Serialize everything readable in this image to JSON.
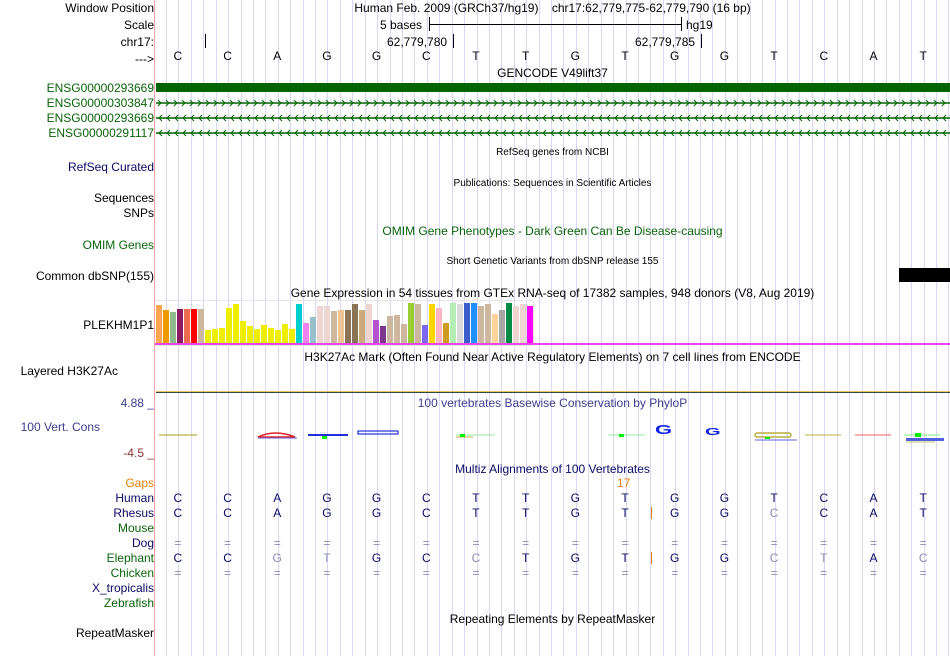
{
  "header": {
    "window_position_label": "Window Position",
    "scale_label": "Scale",
    "chrom_label": "chr17:",
    "strand_label": "--->",
    "assembly": "Human Feb. 2009 (GRCh37/hg19)",
    "position": "chr17:62,779,775-62,779,790 (16 bp)",
    "scale_text": "5 bases",
    "scale_db": "hg19",
    "coord_left": "62,779,780",
    "coord_right": "62,779,785"
  },
  "sequence": [
    "C",
    "C",
    "A",
    "G",
    "G",
    "C",
    "T",
    "T",
    "G",
    "T",
    "G",
    "G",
    "T",
    "C",
    "A",
    "T"
  ],
  "tracks": {
    "gencode": {
      "title": "GENCODE V49lift37",
      "items": [
        {
          "name": "ENSG00000293669",
          "style": "thick"
        },
        {
          "name": "ENSG00000303847",
          "style": "forward"
        },
        {
          "name": "ENSG00000293669",
          "style": "reverse"
        },
        {
          "name": "ENSG00000291117",
          "style": "reverse"
        }
      ],
      "color": "#006400"
    },
    "refseq": {
      "label": "RefSeq Curated",
      "title": "RefSeq genes from NCBI"
    },
    "publications": {
      "label": "Sequences",
      "title": "Publications: Sequences in Scientific Articles"
    },
    "snps": {
      "label": "SNPs"
    },
    "omim": {
      "label": "OMIM Genes",
      "title": "OMIM Gene Phenotypes - Dark Green Can Be Disease-causing"
    },
    "dbsnp": {
      "label": "Common dbSNP(155)",
      "title": "Short Genetic Variants from dbSNP release 155"
    },
    "gtex": {
      "title": "Gene Expression in 54 tissues from GTEx RNA-seq of 17382 samples, 948 donors (V8, Aug 2019)",
      "gene_label": "PLEKHM1P1",
      "bars": [
        {
          "color": "#ffa54f",
          "v": 0.95
        },
        {
          "color": "#ee9a00",
          "v": 0.82
        },
        {
          "color": "#8fbc8f",
          "v": 0.78
        },
        {
          "color": "#8b1c62",
          "v": 0.85
        },
        {
          "color": "#ee6a50",
          "v": 0.85
        },
        {
          "color": "#ff0000",
          "v": 0.85
        },
        {
          "color": "#cdb79e",
          "v": 0.85
        },
        {
          "color": "#eeee00",
          "v": 0.33
        },
        {
          "color": "#eeee00",
          "v": 0.36
        },
        {
          "color": "#eeee00",
          "v": 0.38
        },
        {
          "color": "#eeee00",
          "v": 0.88
        },
        {
          "color": "#eeee00",
          "v": 0.97
        },
        {
          "color": "#eeee00",
          "v": 0.55
        },
        {
          "color": "#eeee00",
          "v": 0.43
        },
        {
          "color": "#eeee00",
          "v": 0.36
        },
        {
          "color": "#eeee00",
          "v": 0.46
        },
        {
          "color": "#eeee00",
          "v": 0.38
        },
        {
          "color": "#eeee00",
          "v": 0.33
        },
        {
          "color": "#eeee00",
          "v": 0.48
        },
        {
          "color": "#eeee00",
          "v": 0.36
        },
        {
          "color": "#00cdcd",
          "v": 0.97
        },
        {
          "color": "#ee82ee",
          "v": 0.5
        },
        {
          "color": "#9ac0cd",
          "v": 0.65
        },
        {
          "color": "#eed5d2",
          "v": 0.93
        },
        {
          "color": "#eed5d2",
          "v": 0.93
        },
        {
          "color": "#cdb79e",
          "v": 0.8
        },
        {
          "color": "#eec591",
          "v": 0.82
        },
        {
          "color": "#8b7355",
          "v": 0.82
        },
        {
          "color": "#8b7355",
          "v": 0.97
        },
        {
          "color": "#cdaa7d",
          "v": 0.82
        },
        {
          "color": "#eed5d2",
          "v": 0.97
        },
        {
          "color": "#b452cd",
          "v": 0.58
        },
        {
          "color": "#7a378b",
          "v": 0.43
        },
        {
          "color": "#cdb79e",
          "v": 0.67
        },
        {
          "color": "#cdb79e",
          "v": 0.7
        },
        {
          "color": "#cdb79e",
          "v": 0.48
        },
        {
          "color": "#9acd32",
          "v": 1.0
        },
        {
          "color": "#cdb79e",
          "v": 0.97
        },
        {
          "color": "#7b68ee",
          "v": 0.46
        },
        {
          "color": "#ffd700",
          "v": 0.97
        },
        {
          "color": "#ffb6c1",
          "v": 0.88
        },
        {
          "color": "#cd9b1d",
          "v": 0.5
        },
        {
          "color": "#b4eeb4",
          "v": 0.99
        },
        {
          "color": "#d9d9d9",
          "v": 0.97
        },
        {
          "color": "#3a5fcd",
          "v": 1.0
        },
        {
          "color": "#1e90ff",
          "v": 1.0
        },
        {
          "color": "#cdb79e",
          "v": 0.92
        },
        {
          "color": "#cdb79e",
          "v": 0.97
        },
        {
          "color": "#ffd39b",
          "v": 0.72
        },
        {
          "color": "#a6a6a6",
          "v": 0.83
        },
        {
          "color": "#008b45",
          "v": 1.0
        },
        {
          "color": "#eed5d2",
          "v": 0.93
        },
        {
          "color": "#eed5d2",
          "v": 0.97
        },
        {
          "color": "#ff00ff",
          "v": 0.93
        }
      ]
    },
    "h3k27ac": {
      "label": "Layered H3K27Ac",
      "title": "H3K27Ac Mark (Often Found Near Active Regulatory Elements) on 7 cell lines from ENCODE"
    },
    "cons": {
      "label": "100 Vert. Cons",
      "title": "100 vertebrates Basewise Conservation by PhyloP",
      "ymax": "4.88 _",
      "ymin": "-4.5 _"
    },
    "multiz": {
      "title": "Multiz Alignments of 100 Vertebrates",
      "gap_count": "17",
      "gaps_label": "Gaps",
      "species": [
        {
          "name": "Human",
          "color": "navy",
          "bases": [
            "C",
            "C",
            "A",
            "G",
            "G",
            "C",
            "T",
            "T",
            "G",
            "T",
            "G",
            "G",
            "T",
            "C",
            "A",
            "T"
          ],
          "faint": [],
          "insert": false
        },
        {
          "name": "Rhesus",
          "color": "navy",
          "bases": [
            "C",
            "C",
            "A",
            "G",
            "G",
            "C",
            "T",
            "T",
            "G",
            "T",
            "G",
            "G",
            "C",
            "C",
            "A",
            "T"
          ],
          "faint": [
            12
          ],
          "insert": true
        },
        {
          "name": "Mouse",
          "color": "green",
          "bases": [],
          "faint": [],
          "insert": false
        },
        {
          "name": "Dog",
          "color": "navy",
          "bases": [
            "=",
            "=",
            "=",
            "=",
            "=",
            "=",
            "=",
            "=",
            "=",
            "=",
            "=",
            "=",
            "=",
            "=",
            "=",
            "="
          ],
          "faint": [
            0,
            1,
            2,
            3,
            4,
            5,
            6,
            7,
            8,
            9,
            10,
            11,
            12,
            13,
            14,
            15
          ],
          "insert": false
        },
        {
          "name": "Elephant",
          "color": "green",
          "bases": [
            "C",
            "C",
            "G",
            "T",
            "G",
            "C",
            "C",
            "T",
            "G",
            "T",
            "G",
            "G",
            "C",
            "T",
            "A",
            "C"
          ],
          "faint": [
            2,
            3,
            6,
            12,
            13,
            15
          ],
          "insert": true
        },
        {
          "name": "Chicken",
          "color": "green",
          "bases": [
            "=",
            "=",
            "=",
            "=",
            "=",
            "=",
            "=",
            "=",
            "=",
            "=",
            "=",
            "=",
            "=",
            "=",
            "=",
            "="
          ],
          "faint": [
            0,
            1,
            2,
            3,
            4,
            5,
            6,
            7,
            8,
            9,
            10,
            11,
            12,
            13,
            14,
            15
          ],
          "insert": false
        },
        {
          "name": "X_tropicalis",
          "color": "navy",
          "bases": [],
          "faint": [],
          "insert": false
        },
        {
          "name": "Zebrafish",
          "color": "green",
          "bases": [],
          "faint": [],
          "insert": false
        }
      ]
    },
    "repeatmasker": {
      "label": "RepeatMasker",
      "title": "Repeating Elements by RepeatMasker"
    }
  }
}
